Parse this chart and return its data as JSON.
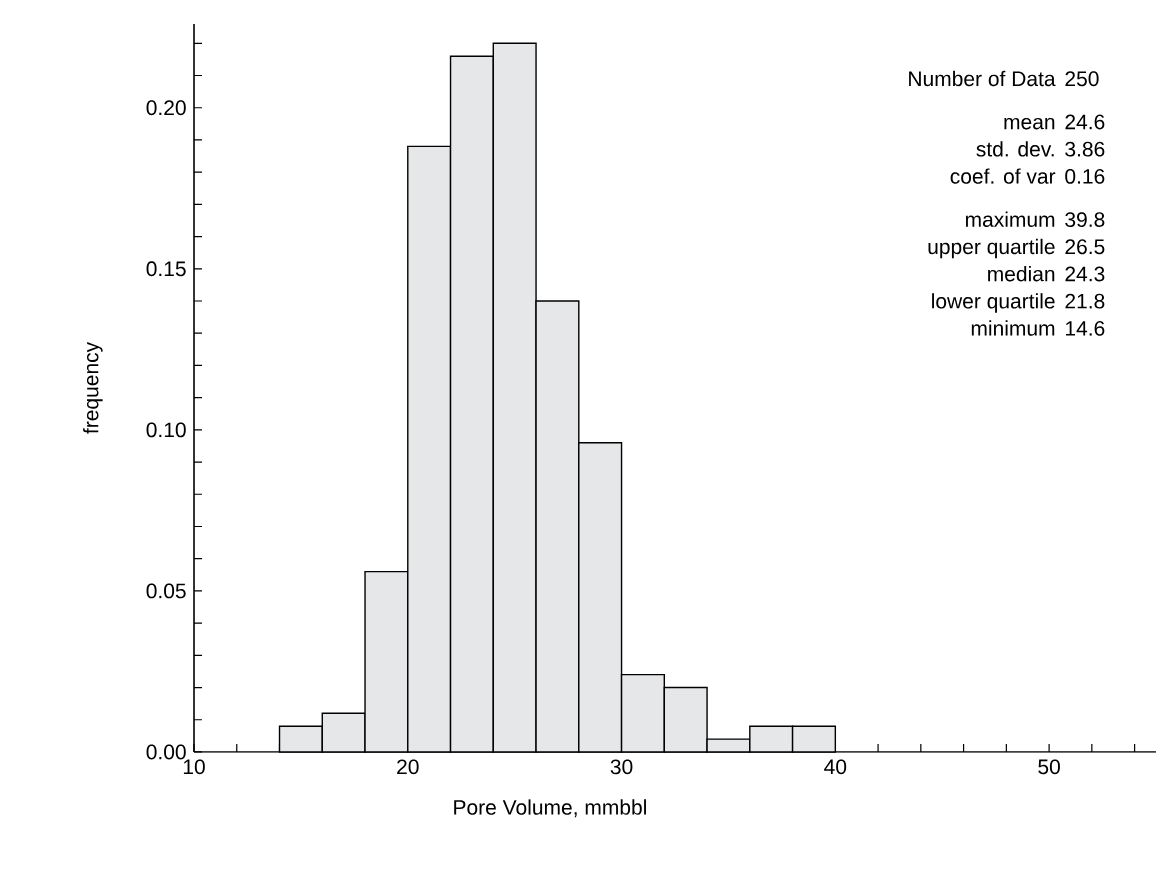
{
  "chart_data": {
    "type": "histogram",
    "xlabel": "Pore Volume, mmbbl",
    "ylabel": "frequency",
    "bins": [
      14,
      16,
      18,
      20,
      22,
      24,
      26,
      28,
      30,
      32,
      34,
      36,
      38,
      40
    ],
    "values": [
      0.008,
      0.012,
      0.056,
      0.188,
      0.216,
      0.22,
      0.14,
      0.096,
      0.024,
      0.02,
      0.004,
      0.008,
      0.008
    ],
    "color": "#e6e7e8",
    "xlim": [
      10,
      55
    ],
    "ylim": [
      0,
      0.226
    ],
    "xticks": [
      10,
      {
        "value": 12,
        "label": null
      },
      {
        "value": 14,
        "label": null
      },
      {
        "value": 16,
        "label": null
      },
      {
        "value": 18,
        "label": null
      },
      20,
      {
        "value": 22,
        "label": null
      },
      {
        "value": 24,
        "label": null
      },
      {
        "value": 26,
        "label": null
      },
      {
        "value": 28,
        "label": null
      },
      30,
      {
        "value": 32,
        "label": null
      },
      {
        "value": 34,
        "label": null
      },
      {
        "value": 36,
        "label": null
      },
      {
        "value": 38,
        "label": null
      },
      40,
      {
        "value": 42,
        "label": null
      },
      {
        "value": 44,
        "label": null
      },
      {
        "value": 46,
        "label": null
      },
      {
        "value": 48,
        "label": null
      },
      50,
      {
        "value": 52,
        "label": null
      },
      {
        "value": 54,
        "label": null
      }
    ],
    "yticks": [
      {
        "value": 0,
        "label": "0.00"
      },
      {
        "value": 0.01,
        "label": null
      },
      {
        "value": 0.02,
        "label": null
      },
      {
        "value": 0.03,
        "label": null
      },
      {
        "value": 0.04,
        "label": null
      },
      {
        "value": 0.05,
        "label": "0.05"
      },
      {
        "value": 0.06,
        "label": null
      },
      {
        "value": 0.07,
        "label": null
      },
      {
        "value": 0.08,
        "label": null
      },
      {
        "value": 0.09,
        "label": null
      },
      {
        "value": 0.1,
        "label": "0.10"
      },
      {
        "value": 0.11,
        "label": null
      },
      {
        "value": 0.12,
        "label": null
      },
      {
        "value": 0.13,
        "label": null
      },
      {
        "value": 0.14,
        "label": null
      },
      {
        "value": 0.15,
        "label": "0.15"
      },
      {
        "value": 0.16,
        "label": null
      },
      {
        "value": 0.17,
        "label": null
      },
      {
        "value": 0.18,
        "label": null
      },
      {
        "value": 0.19,
        "label": null
      },
      {
        "value": 0.2,
        "label": "0.20"
      },
      {
        "value": 0.21,
        "label": null
      },
      {
        "value": 0.22,
        "label": null
      }
    ],
    "grid": false,
    "annotations": [
      "Number of Data",
      "250",
      "mean",
      "24.6",
      "std. dev.",
      "3.86",
      "coef. of var",
      "0.16",
      "maximum",
      "39.8",
      "upper quartile",
      "26.5",
      "median",
      "24.3",
      "lower quartile",
      "21.8",
      "minimum",
      "14.6"
    ]
  }
}
